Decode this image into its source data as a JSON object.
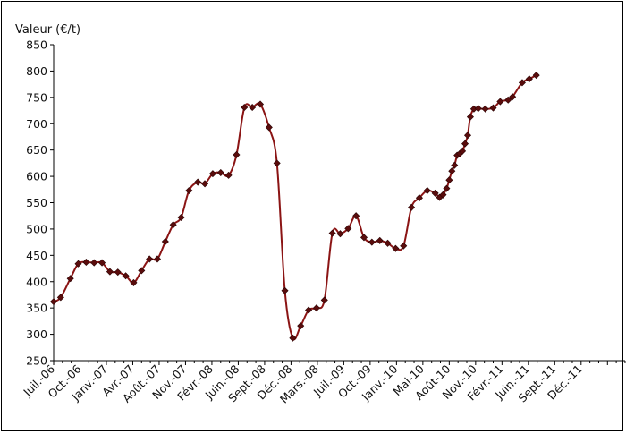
{
  "chart_data": {
    "type": "line",
    "title": "",
    "xlabel": "",
    "ylabel": "Valeur (€/t)",
    "ylim": [
      250,
      850
    ],
    "yticks": [
      250,
      300,
      350,
      400,
      450,
      500,
      550,
      600,
      650,
      700,
      750,
      800,
      850
    ],
    "xlim": [
      0,
      65
    ],
    "xticks": [
      {
        "m": 0,
        "label": "Juil.-06"
      },
      {
        "m": 3,
        "label": "Oct.-06"
      },
      {
        "m": 6,
        "label": "Janv.-07"
      },
      {
        "m": 9,
        "label": "Avr.-07"
      },
      {
        "m": 12,
        "label": "Août.-07"
      },
      {
        "m": 15,
        "label": "Nov.-07"
      },
      {
        "m": 18,
        "label": "Févr.-08"
      },
      {
        "m": 21,
        "label": "Juin.-08"
      },
      {
        "m": 24,
        "label": "Sept.-08"
      },
      {
        "m": 27,
        "label": "Déc.-08"
      },
      {
        "m": 30,
        "label": "Mars.-08"
      },
      {
        "m": 33,
        "label": "Juil.-09"
      },
      {
        "m": 36,
        "label": "Oct.-09"
      },
      {
        "m": 39,
        "label": "Janv.-10"
      },
      {
        "m": 42,
        "label": "Mai-10"
      },
      {
        "m": 45,
        "label": "Août-10"
      },
      {
        "m": 48,
        "label": "Nov.-10"
      },
      {
        "m": 51,
        "label": "Févr.-11"
      },
      {
        "m": 54,
        "label": "Juin.-11"
      },
      {
        "m": 57,
        "label": "Sept.-11"
      },
      {
        "m": 60,
        "label": "Déc.-11"
      }
    ],
    "grid": false,
    "line_color": "#8b1414",
    "marker_color": "#5a0c0c",
    "points": [
      [
        0,
        362
      ],
      [
        0.8,
        370
      ],
      [
        1.9,
        406
      ],
      [
        2.8,
        434
      ],
      [
        3.7,
        437
      ],
      [
        4.6,
        436
      ],
      [
        5.5,
        436
      ],
      [
        6.4,
        419
      ],
      [
        7.3,
        418
      ],
      [
        8.2,
        411
      ],
      [
        9.1,
        398
      ],
      [
        10.0,
        421
      ],
      [
        10.9,
        443
      ],
      [
        11.8,
        443
      ],
      [
        12.7,
        476
      ],
      [
        13.6,
        508
      ],
      [
        14.5,
        522
      ],
      [
        15.4,
        573
      ],
      [
        16.4,
        589
      ],
      [
        17.2,
        586
      ],
      [
        18.1,
        605
      ],
      [
        19.0,
        607
      ],
      [
        19.9,
        602
      ],
      [
        20.8,
        641
      ],
      [
        21.7,
        731
      ],
      [
        22.6,
        731
      ],
      [
        23.5,
        737
      ],
      [
        24.5,
        693
      ],
      [
        25.4,
        625
      ],
      [
        26.3,
        383
      ],
      [
        27.2,
        293
      ],
      [
        28.1,
        316
      ],
      [
        29.0,
        346
      ],
      [
        29.9,
        350
      ],
      [
        30.8,
        365
      ],
      [
        31.7,
        492
      ],
      [
        32.6,
        491
      ],
      [
        33.5,
        501
      ],
      [
        34.4,
        525
      ],
      [
        35.3,
        484
      ],
      [
        36.2,
        475
      ],
      [
        37.1,
        478
      ],
      [
        38.0,
        473
      ],
      [
        38.9,
        463
      ],
      [
        39.8,
        468
      ],
      [
        40.7,
        541
      ],
      [
        41.6,
        559
      ],
      [
        42.5,
        573
      ],
      [
        43.4,
        568
      ],
      [
        43.9,
        560
      ],
      [
        44.3,
        565
      ],
      [
        44.7,
        577
      ],
      [
        45.0,
        593
      ],
      [
        45.3,
        610
      ],
      [
        45.6,
        621
      ],
      [
        45.9,
        640
      ],
      [
        46.2,
        643
      ],
      [
        46.5,
        648
      ],
      [
        46.8,
        662
      ],
      [
        47.1,
        678
      ],
      [
        47.4,
        713
      ],
      [
        47.8,
        728
      ],
      [
        48.3,
        729
      ],
      [
        49.1,
        728
      ],
      [
        50.0,
        730
      ],
      [
        50.8,
        742
      ],
      [
        51.7,
        745
      ],
      [
        52.2,
        751
      ],
      [
        53.3,
        778
      ],
      [
        54.1,
        785
      ],
      [
        54.9,
        792
      ]
    ]
  }
}
